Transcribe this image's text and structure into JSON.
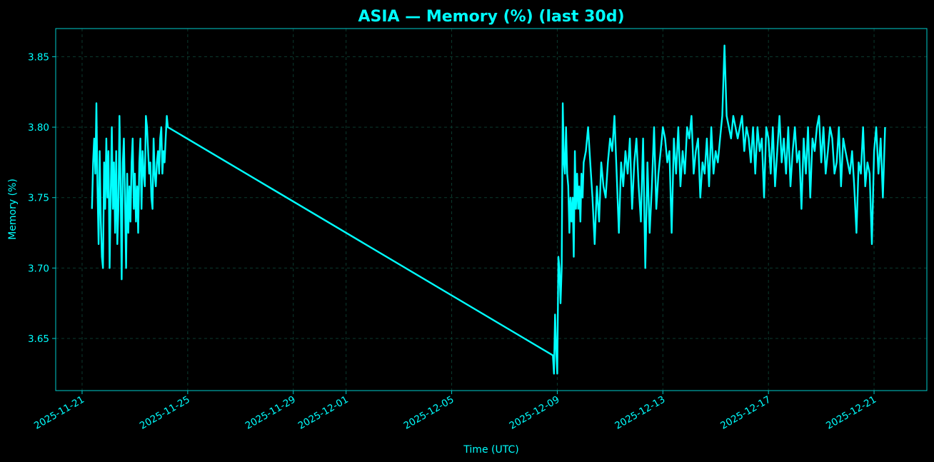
{
  "chart_data": {
    "type": "line",
    "title": "ASIA — Memory (%) (last 30d)",
    "xlabel": "Time (UTC)",
    "ylabel": "Memory (%)",
    "x_range": [
      "2025-11-20T00:00",
      "2025-12-23T00:00"
    ],
    "ylim": [
      3.613,
      3.87
    ],
    "x_ticks": [
      "2025-11-21",
      "2025-11-25",
      "2025-11-29",
      "2025-12-01",
      "2025-12-05",
      "2025-12-09",
      "2025-12-13",
      "2025-12-17",
      "2025-12-21"
    ],
    "y_ticks": [
      "3.65",
      "3.70",
      "3.75",
      "3.80",
      "3.85"
    ],
    "grid": true,
    "colors": {
      "background": "#000000",
      "line": "#00ffff",
      "grid": "#0b3a2e",
      "axes": "#00cccc"
    },
    "series": [
      {
        "x": [
          "2025-11-21T09:00",
          "2025-11-21T10:00",
          "2025-11-21T11:00",
          "2025-11-21T12:00",
          "2025-11-21T13:00",
          "2025-11-21T14:00",
          "2025-11-21T15:00",
          "2025-11-21T16:00",
          "2025-11-21T17:00",
          "2025-11-21T18:00",
          "2025-11-21T19:00",
          "2025-11-21T20:00",
          "2025-11-21T21:00",
          "2025-11-21T22:00",
          "2025-11-21T23:00",
          "2025-11-22T00:00",
          "2025-11-22T01:00",
          "2025-11-22T02:00",
          "2025-11-22T03:00",
          "2025-11-22T04:00",
          "2025-11-22T05:00",
          "2025-11-22T06:00",
          "2025-11-22T07:00",
          "2025-11-22T08:00",
          "2025-11-22T09:00",
          "2025-11-22T10:00",
          "2025-11-22T11:00",
          "2025-11-22T12:00",
          "2025-11-22T13:00",
          "2025-11-22T14:00",
          "2025-11-22T15:00",
          "2025-11-22T16:00",
          "2025-11-22T17:00",
          "2025-11-22T18:00",
          "2025-11-22T19:00",
          "2025-11-22T20:00",
          "2025-11-22T21:00",
          "2025-11-22T22:00",
          "2025-11-22T23:00",
          "2025-11-23T00:00",
          "2025-11-23T01:00",
          "2025-11-23T02:00",
          "2025-11-23T03:00",
          "2025-11-23T04:00",
          "2025-11-23T05:00",
          "2025-11-23T06:00",
          "2025-11-23T07:00",
          "2025-11-23T08:00",
          "2025-11-23T09:00",
          "2025-11-23T10:00",
          "2025-11-23T11:00",
          "2025-11-23T12:00",
          "2025-11-23T13:00",
          "2025-11-23T14:00",
          "2025-11-23T15:00",
          "2025-11-23T16:00",
          "2025-11-23T17:00",
          "2025-11-23T18:00",
          "2025-11-23T19:00",
          "2025-11-23T20:00",
          "2025-11-23T21:00",
          "2025-11-23T22:00",
          "2025-11-23T23:00",
          "2025-11-24T00:00",
          "2025-11-24T01:00",
          "2025-11-24T02:00",
          "2025-11-24T03:00",
          "2025-11-24T04:00",
          "2025-11-24T05:00",
          "2025-11-24T06:00",
          "2025-12-08T20:00",
          "2025-12-08T21:00",
          "2025-12-08T22:00",
          "2025-12-08T23:00",
          "2025-12-09T00:00",
          "2025-12-09T01:00",
          "2025-12-09T02:00",
          "2025-12-09T03:00",
          "2025-12-09T04:00",
          "2025-12-09T05:00",
          "2025-12-09T06:00",
          "2025-12-09T07:00",
          "2025-12-09T08:00",
          "2025-12-09T09:00",
          "2025-12-09T10:00",
          "2025-12-09T11:00",
          "2025-12-09T12:00",
          "2025-12-09T13:00",
          "2025-12-09T14:00",
          "2025-12-09T15:00",
          "2025-12-09T16:00",
          "2025-12-09T17:00",
          "2025-12-09T18:00",
          "2025-12-09T19:00",
          "2025-12-09T20:00",
          "2025-12-09T21:00",
          "2025-12-09T22:00",
          "2025-12-09T23:00",
          "2025-12-10T00:00",
          "2025-12-10T02:00",
          "2025-12-10T04:00",
          "2025-12-10T06:00",
          "2025-12-10T08:00",
          "2025-12-10T10:00",
          "2025-12-10T12:00",
          "2025-12-10T14:00",
          "2025-12-10T16:00",
          "2025-12-10T18:00",
          "2025-12-10T20:00",
          "2025-12-10T22:00",
          "2025-12-11T00:00",
          "2025-12-11T02:00",
          "2025-12-11T04:00",
          "2025-12-11T06:00",
          "2025-12-11T08:00",
          "2025-12-11T10:00",
          "2025-12-11T12:00",
          "2025-12-11T14:00",
          "2025-12-11T16:00",
          "2025-12-11T18:00",
          "2025-12-11T20:00",
          "2025-12-11T22:00",
          "2025-12-12T00:00",
          "2025-12-12T02:00",
          "2025-12-12T04:00",
          "2025-12-12T06:00",
          "2025-12-12T08:00",
          "2025-12-12T10:00",
          "2025-12-12T12:00",
          "2025-12-12T14:00",
          "2025-12-12T16:00",
          "2025-12-12T18:00",
          "2025-12-12T20:00",
          "2025-12-12T22:00",
          "2025-12-13T00:00",
          "2025-12-13T02:00",
          "2025-12-13T04:00",
          "2025-12-13T06:00",
          "2025-12-13T08:00",
          "2025-12-13T10:00",
          "2025-12-13T12:00",
          "2025-12-13T14:00",
          "2025-12-13T16:00",
          "2025-12-13T18:00",
          "2025-12-13T20:00",
          "2025-12-13T22:00",
          "2025-12-14T00:00",
          "2025-12-14T02:00",
          "2025-12-14T04:00",
          "2025-12-14T06:00",
          "2025-12-14T08:00",
          "2025-12-14T10:00",
          "2025-12-14T12:00",
          "2025-12-14T14:00",
          "2025-12-14T16:00",
          "2025-12-14T18:00",
          "2025-12-14T20:00",
          "2025-12-14T22:00",
          "2025-12-15T00:00",
          "2025-12-15T02:00",
          "2025-12-15T04:00",
          "2025-12-15T06:00",
          "2025-12-15T08:00",
          "2025-12-15T10:00",
          "2025-12-15T12:00",
          "2025-12-15T14:00",
          "2025-12-15T16:00",
          "2025-12-15T18:00",
          "2025-12-15T20:00",
          "2025-12-15T22:00",
          "2025-12-16T00:00",
          "2025-12-16T02:00",
          "2025-12-16T04:00",
          "2025-12-16T06:00",
          "2025-12-16T08:00",
          "2025-12-16T10:00",
          "2025-12-16T12:00",
          "2025-12-16T14:00",
          "2025-12-16T16:00",
          "2025-12-16T18:00",
          "2025-12-16T20:00",
          "2025-12-16T22:00",
          "2025-12-17T00:00",
          "2025-12-17T02:00",
          "2025-12-17T04:00",
          "2025-12-17T06:00",
          "2025-12-17T08:00",
          "2025-12-17T10:00",
          "2025-12-17T12:00",
          "2025-12-17T14:00",
          "2025-12-17T16:00",
          "2025-12-17T18:00",
          "2025-12-17T20:00",
          "2025-12-17T22:00",
          "2025-12-18T00:00",
          "2025-12-18T02:00",
          "2025-12-18T04:00",
          "2025-12-18T06:00",
          "2025-12-18T08:00",
          "2025-12-18T10:00",
          "2025-12-18T12:00",
          "2025-12-18T14:00",
          "2025-12-18T16:00",
          "2025-12-18T18:00",
          "2025-12-18T20:00",
          "2025-12-18T22:00",
          "2025-12-19T00:00",
          "2025-12-19T02:00",
          "2025-12-19T04:00",
          "2025-12-19T06:00",
          "2025-12-19T08:00",
          "2025-12-19T10:00",
          "2025-12-19T12:00",
          "2025-12-19T14:00",
          "2025-12-19T16:00",
          "2025-12-19T18:00",
          "2025-12-19T20:00",
          "2025-12-19T22:00",
          "2025-12-20T00:00",
          "2025-12-20T02:00",
          "2025-12-20T04:00",
          "2025-12-20T06:00",
          "2025-12-20T08:00",
          "2025-12-20T10:00",
          "2025-12-20T12:00",
          "2025-12-20T14:00",
          "2025-12-20T16:00",
          "2025-12-20T18:00",
          "2025-12-20T20:00",
          "2025-12-20T22:00",
          "2025-12-21T00:00",
          "2025-12-21T02:00",
          "2025-12-21T04:00",
          "2025-12-21T06:00",
          "2025-12-21T08:00",
          "2025-12-21T10:00"
        ],
        "y": [
          3.742,
          3.775,
          3.792,
          3.767,
          3.817,
          3.758,
          3.717,
          3.783,
          3.733,
          3.708,
          3.7,
          3.775,
          3.742,
          3.792,
          3.75,
          3.783,
          3.7,
          3.75,
          3.8,
          3.742,
          3.775,
          3.725,
          3.783,
          3.717,
          3.742,
          3.808,
          3.758,
          3.692,
          3.775,
          3.792,
          3.75,
          3.7,
          3.767,
          3.725,
          3.758,
          3.733,
          3.775,
          3.792,
          3.742,
          3.767,
          3.733,
          3.758,
          3.725,
          3.775,
          3.792,
          3.742,
          3.783,
          3.767,
          3.758,
          3.808,
          3.8,
          3.783,
          3.767,
          3.775,
          3.75,
          3.742,
          3.792,
          3.767,
          3.758,
          3.775,
          3.783,
          3.767,
          3.792,
          3.8,
          3.767,
          3.783,
          3.775,
          3.792,
          3.808,
          3.8,
          3.638,
          3.625,
          3.667,
          3.642,
          3.625,
          3.708,
          3.7,
          3.675,
          3.7,
          3.817,
          3.775,
          3.767,
          3.8,
          3.767,
          3.758,
          3.725,
          3.75,
          3.733,
          3.75,
          3.708,
          3.783,
          3.742,
          3.767,
          3.742,
          3.758,
          3.733,
          3.767,
          3.75,
          3.775,
          3.783,
          3.8,
          3.775,
          3.75,
          3.717,
          3.758,
          3.733,
          3.775,
          3.758,
          3.75,
          3.775,
          3.792,
          3.783,
          3.808,
          3.767,
          3.725,
          3.775,
          3.758,
          3.783,
          3.767,
          3.792,
          3.742,
          3.775,
          3.792,
          3.758,
          3.733,
          3.792,
          3.7,
          3.775,
          3.725,
          3.758,
          3.8,
          3.742,
          3.767,
          3.783,
          3.8,
          3.792,
          3.775,
          3.783,
          3.725,
          3.792,
          3.767,
          3.8,
          3.758,
          3.783,
          3.767,
          3.8,
          3.792,
          3.808,
          3.767,
          3.783,
          3.792,
          3.75,
          3.775,
          3.767,
          3.792,
          3.758,
          3.8,
          3.767,
          3.783,
          3.775,
          3.792,
          3.808,
          3.858,
          3.808,
          3.8,
          3.792,
          3.808,
          3.8,
          3.792,
          3.8,
          3.808,
          3.783,
          3.8,
          3.792,
          3.775,
          3.8,
          3.767,
          3.8,
          3.783,
          3.792,
          3.75,
          3.8,
          3.792,
          3.767,
          3.8,
          3.758,
          3.783,
          3.808,
          3.775,
          3.792,
          3.767,
          3.8,
          3.758,
          3.783,
          3.8,
          3.775,
          3.783,
          3.742,
          3.792,
          3.767,
          3.8,
          3.75,
          3.792,
          3.783,
          3.8,
          3.808,
          3.775,
          3.8,
          3.767,
          3.783,
          3.8,
          3.792,
          3.767,
          3.775,
          3.8,
          3.758,
          3.792,
          3.783,
          3.775,
          3.767,
          3.783,
          3.758,
          3.725,
          3.775,
          3.767,
          3.8,
          3.758,
          3.775,
          3.767,
          3.717,
          3.783,
          3.8,
          3.767,
          3.792,
          3.75,
          3.8
        ]
      }
    ]
  }
}
